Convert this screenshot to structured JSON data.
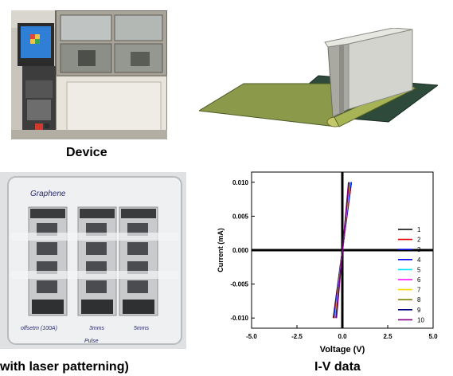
{
  "captions": {
    "device": "Device",
    "laser": "with laser patterning)",
    "iv": "I-V data"
  },
  "photo_labels": {
    "graphene": "Graphene",
    "bottom_left": "offsetm (100A)",
    "bottom_mid": "3mms",
    "bottom_right": "5mms",
    "bottom_note": "Pulse"
  },
  "colors": {
    "green_sheet": "#8a9a4a",
    "dark_sheet": "#2d4a3a",
    "blade": "#c9c9c3"
  },
  "chart_data": {
    "type": "line",
    "title": "",
    "xlabel": "Voltage (V)",
    "ylabel": "Current (mA)",
    "xlim": [
      -5.0,
      5.0
    ],
    "ylim": [
      -0.0115,
      0.0115
    ],
    "xticks": [
      "-5.0",
      "-2.5",
      "0.0",
      "2.5",
      "5.0"
    ],
    "xtick_values": [
      -5.0,
      -2.5,
      0.0,
      2.5,
      5.0
    ],
    "yticks": [
      "0.010",
      "0.005",
      "0.000",
      "-0.005",
      "-0.010"
    ],
    "ytick_values": [
      0.01,
      0.005,
      0.0,
      -0.005,
      -0.01
    ],
    "grid": false,
    "legend_position": "right",
    "series": [
      {
        "name": "1",
        "color": "#000000",
        "x": [
          -0.5,
          0.5
        ],
        "y": [
          -0.01,
          0.01
        ]
      },
      {
        "name": "2",
        "color": "#e8000b",
        "x": [
          -0.48,
          0.5
        ],
        "y": [
          -0.01,
          0.01
        ]
      },
      {
        "name": "3",
        "color": "#0000cc",
        "x": [
          -0.46,
          0.48
        ],
        "y": [
          -0.01,
          0.01
        ]
      },
      {
        "name": "4",
        "color": "#0000ff",
        "x": [
          -0.44,
          0.46
        ],
        "y": [
          -0.01,
          0.01
        ]
      },
      {
        "name": "5",
        "color": "#00e5ff",
        "x": [
          -0.42,
          0.44
        ],
        "y": [
          -0.01,
          0.01
        ]
      },
      {
        "name": "6",
        "color": "#ff00ff",
        "x": [
          -0.4,
          0.42
        ],
        "y": [
          -0.01,
          0.01
        ]
      },
      {
        "name": "7",
        "color": "#ffd700",
        "x": [
          -0.38,
          0.4
        ],
        "y": [
          -0.01,
          0.01
        ]
      },
      {
        "name": "8",
        "color": "#808000",
        "x": [
          -0.36,
          0.38
        ],
        "y": [
          -0.01,
          0.01
        ]
      },
      {
        "name": "9",
        "color": "#000080",
        "x": [
          -0.34,
          0.36
        ],
        "y": [
          -0.01,
          0.01
        ]
      },
      {
        "name": "10",
        "color": "#800080",
        "x": [
          -0.32,
          0.34
        ],
        "y": [
          -0.01,
          0.01
        ]
      }
    ]
  }
}
